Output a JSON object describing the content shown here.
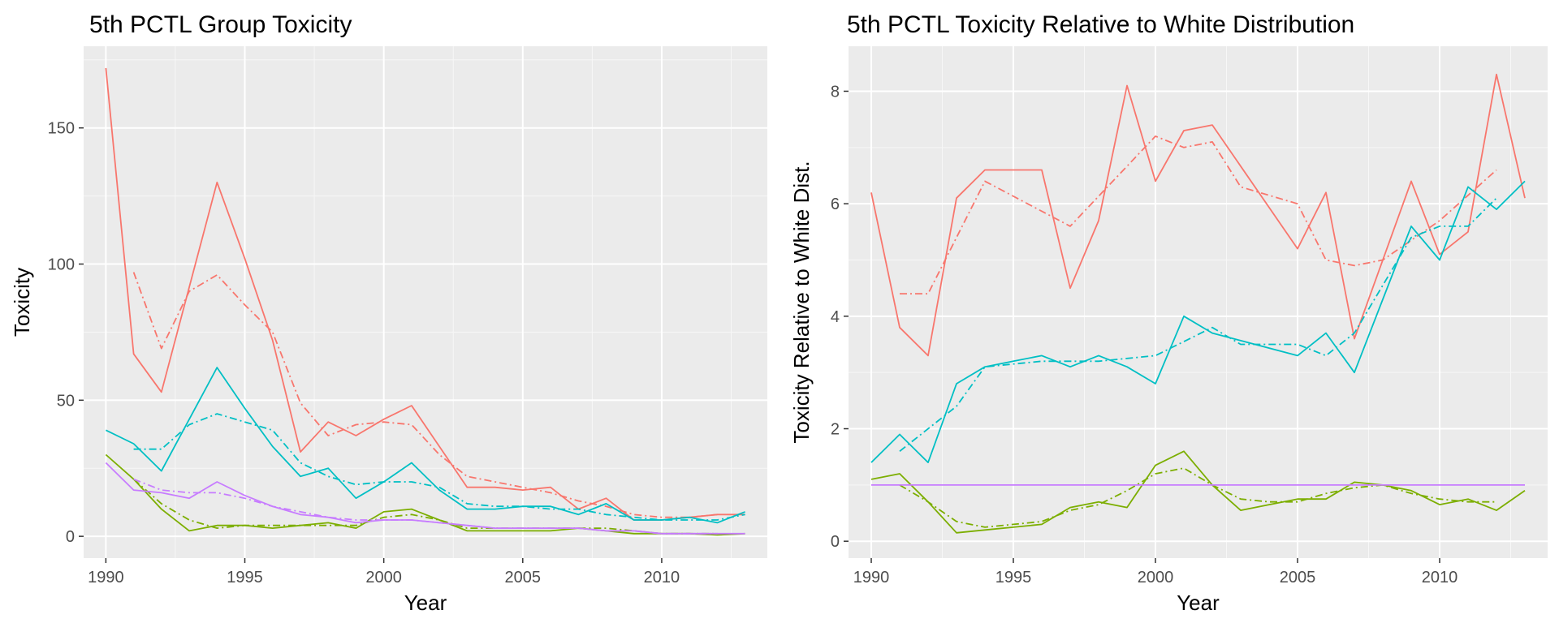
{
  "chart_data": [
    {
      "type": "line",
      "title": "5th PCTL Group Toxicity",
      "xlabel": "Year",
      "ylabel": "Toxicity",
      "xlim": [
        1989.2,
        2013.8
      ],
      "ylim": [
        -8,
        180
      ],
      "x_ticks": [
        1990,
        1995,
        2000,
        2005,
        2010
      ],
      "y_ticks": [
        0,
        50,
        100,
        150
      ],
      "grid": true,
      "series": [
        {
          "color": "#F8766D",
          "style": "solid",
          "width": 1.8,
          "x": [
            1990,
            1991,
            1992,
            1994,
            1995,
            1996,
            1997,
            1998,
            1999,
            2000,
            2001,
            2002,
            2003,
            2004,
            2005,
            2006,
            2007,
            2008,
            2009,
            2010,
            2011,
            2012,
            2013
          ],
          "y": [
            172,
            67,
            53,
            130,
            102,
            72,
            31,
            42,
            37,
            43,
            48,
            33,
            18,
            18,
            17,
            18,
            10,
            14,
            6,
            6,
            7,
            8,
            8
          ]
        },
        {
          "color": "#F8766D",
          "style": "dashdot",
          "width": 1.8,
          "x": [
            1991,
            1992,
            1993,
            1994,
            1995,
            1996,
            1997,
            1998,
            1999,
            2000,
            2001,
            2002,
            2003,
            2004,
            2005,
            2006,
            2007,
            2008,
            2009,
            2010,
            2011,
            2012
          ],
          "y": [
            97,
            69,
            90,
            96,
            85,
            75,
            49,
            37,
            41,
            42,
            41,
            30,
            22,
            20,
            18,
            16,
            13,
            11,
            8,
            7,
            7,
            8
          ]
        },
        {
          "color": "#00BFC4",
          "style": "solid",
          "width": 1.8,
          "x": [
            1990,
            1991,
            1992,
            1994,
            1995,
            1996,
            1997,
            1998,
            1999,
            2000,
            2001,
            2002,
            2003,
            2004,
            2005,
            2006,
            2007,
            2008,
            2009,
            2010,
            2011,
            2012,
            2013
          ],
          "y": [
            39,
            34,
            24,
            62,
            47,
            33,
            22,
            25,
            14,
            20,
            27,
            17,
            10,
            10,
            11,
            11,
            8,
            12,
            6,
            6,
            7,
            5,
            9
          ]
        },
        {
          "color": "#00BFC4",
          "style": "dashdot",
          "width": 1.8,
          "x": [
            1991,
            1992,
            1993,
            1994,
            1995,
            1996,
            1997,
            1998,
            1999,
            2000,
            2001,
            2002,
            2003,
            2004,
            2005,
            2006,
            2007,
            2008,
            2009,
            2010,
            2011,
            2012,
            2013
          ],
          "y": [
            32,
            32,
            41,
            45,
            42,
            39,
            27,
            22,
            19,
            20,
            20,
            18,
            12,
            11,
            11,
            10,
            10,
            8,
            7,
            6,
            6,
            6,
            8
          ]
        },
        {
          "color": "#7CAE00",
          "style": "solid",
          "width": 1.8,
          "x": [
            1990,
            1991,
            1992,
            1993,
            1994,
            1995,
            1996,
            1997,
            1998,
            1999,
            2000,
            2001,
            2002,
            2003,
            2004,
            2005,
            2006,
            2007,
            2008,
            2009,
            2010,
            2011,
            2012,
            2013
          ],
          "y": [
            30,
            21,
            10,
            2,
            4,
            4,
            3,
            4,
            5,
            3,
            9,
            10,
            6,
            2,
            2,
            2,
            2,
            3,
            2,
            1,
            1,
            1,
            0.5,
            1
          ]
        },
        {
          "color": "#7CAE00",
          "style": "dashdot",
          "width": 1.8,
          "x": [
            1991,
            1992,
            1993,
            1994,
            1995,
            1996,
            1997,
            1998,
            1999,
            2000,
            2001,
            2002,
            2003,
            2004,
            2005,
            2006,
            2007,
            2008,
            2009,
            2010,
            2011,
            2012
          ],
          "y": [
            21,
            12,
            6,
            3,
            4,
            4,
            4,
            4,
            4,
            7,
            8,
            6,
            3,
            3,
            3,
            3,
            3,
            3,
            2,
            1,
            1,
            1
          ]
        },
        {
          "color": "#C77CFF",
          "style": "solid",
          "width": 1.8,
          "x": [
            1990,
            1991,
            1992,
            1993,
            1994,
            1995,
            1996,
            1997,
            1998,
            1999,
            2000,
            2001,
            2002,
            2003,
            2004,
            2005,
            2006,
            2007,
            2008,
            2009,
            2010,
            2011,
            2012,
            2013
          ],
          "y": [
            27,
            17,
            16,
            14,
            20,
            15,
            11,
            8,
            7,
            5,
            6,
            6,
            5,
            4,
            3,
            3,
            3,
            3,
            2,
            2,
            1,
            1,
            1,
            1
          ]
        },
        {
          "color": "#C77CFF",
          "style": "dashdot",
          "width": 1.8,
          "x": [
            1991,
            1992,
            1993,
            1994,
            1995,
            1996,
            1997,
            1998,
            1999,
            2000,
            2001,
            2002,
            2003,
            2004,
            2005,
            2006,
            2007,
            2008,
            2009,
            2010,
            2011,
            2012
          ],
          "y": [
            21,
            17,
            16,
            16,
            14,
            11,
            9,
            7,
            6,
            6,
            6,
            5,
            4,
            3,
            3,
            3,
            3,
            2,
            2,
            1,
            1,
            1
          ]
        }
      ]
    },
    {
      "type": "line",
      "title": "5th PCTL Toxicity Relative to White Distribution",
      "xlabel": "Year",
      "ylabel": "Toxicity Relative to White Dist.",
      "xlim": [
        1989.2,
        2013.8
      ],
      "ylim": [
        -0.3,
        8.8
      ],
      "x_ticks": [
        1990,
        1995,
        2000,
        2005,
        2010
      ],
      "y_ticks": [
        0,
        2,
        4,
        6,
        8
      ],
      "grid": true,
      "series": [
        {
          "color": "#F8766D",
          "style": "solid",
          "width": 1.8,
          "x": [
            1990,
            1991,
            1992,
            1993,
            1994,
            1996,
            1997,
            1998,
            1999,
            2000,
            2001,
            2002,
            2005,
            2006,
            2007,
            2009,
            2010,
            2011,
            2012,
            2013
          ],
          "y": [
            6.2,
            3.8,
            3.3,
            6.1,
            6.6,
            6.6,
            4.5,
            5.7,
            8.1,
            6.4,
            7.3,
            7.4,
            5.2,
            6.2,
            3.6,
            6.4,
            5.1,
            5.5,
            8.3,
            6.1
          ]
        },
        {
          "color": "#F8766D",
          "style": "dashdot",
          "width": 1.8,
          "x": [
            1991,
            1992,
            1994,
            1997,
            2000,
            2001,
            2002,
            2003,
            2005,
            2006,
            2007,
            2008,
            2010,
            2012
          ],
          "y": [
            4.4,
            4.4,
            6.4,
            5.6,
            7.2,
            7.0,
            7.1,
            6.3,
            6.0,
            5.0,
            4.9,
            5.0,
            5.7,
            6.6
          ]
        },
        {
          "color": "#00BFC4",
          "style": "solid",
          "width": 1.8,
          "x": [
            1990,
            1991,
            1992,
            1993,
            1994,
            1995,
            1996,
            1997,
            1998,
            1999,
            2000,
            2001,
            2002,
            2005,
            2006,
            2007,
            2008,
            2009,
            2010,
            2011,
            2012,
            2013
          ],
          "y": [
            1.4,
            1.9,
            1.4,
            2.8,
            3.1,
            3.2,
            3.3,
            3.1,
            3.3,
            3.1,
            2.8,
            4.0,
            3.7,
            3.3,
            3.7,
            3.0,
            4.3,
            5.6,
            5.0,
            6.3,
            5.9,
            6.4
          ]
        },
        {
          "color": "#00BFC4",
          "style": "dashdot",
          "width": 1.8,
          "x": [
            1991,
            1993,
            1994,
            1996,
            1997,
            1998,
            2000,
            2002,
            2003,
            2005,
            2006,
            2007,
            2009,
            2010,
            2011,
            2012
          ],
          "y": [
            1.6,
            2.4,
            3.1,
            3.2,
            3.2,
            3.2,
            3.3,
            3.8,
            3.5,
            3.5,
            3.3,
            3.7,
            5.4,
            5.6,
            5.6,
            6.1
          ]
        },
        {
          "color": "#7CAE00",
          "style": "solid",
          "width": 1.8,
          "x": [
            1990,
            1991,
            1992,
            1993,
            1994,
            1995,
            1996,
            1997,
            1998,
            1999,
            2000,
            2001,
            2002,
            2003,
            2004,
            2005,
            2006,
            2007,
            2008,
            2009,
            2010,
            2011,
            2012,
            2013
          ],
          "y": [
            1.1,
            1.2,
            0.7,
            0.15,
            0.2,
            0.25,
            0.3,
            0.6,
            0.7,
            0.6,
            1.35,
            1.6,
            1.0,
            0.55,
            0.65,
            0.75,
            0.75,
            1.05,
            1.0,
            0.9,
            0.65,
            0.75,
            0.55,
            0.9
          ]
        },
        {
          "color": "#7CAE00",
          "style": "dashdot",
          "width": 1.8,
          "x": [
            1991,
            1992,
            1993,
            1994,
            1995,
            1996,
            1997,
            1998,
            1999,
            2000,
            2001,
            2002,
            2003,
            2004,
            2005,
            2006,
            2007,
            2008,
            2009,
            2010,
            2011,
            2012
          ],
          "y": [
            1.0,
            0.7,
            0.35,
            0.25,
            0.3,
            0.35,
            0.55,
            0.65,
            0.9,
            1.2,
            1.3,
            1.0,
            0.75,
            0.7,
            0.7,
            0.85,
            0.95,
            1.0,
            0.85,
            0.75,
            0.7,
            0.7
          ]
        },
        {
          "color": "#C77CFF",
          "style": "solid",
          "width": 1.8,
          "x": [
            1990,
            2013
          ],
          "y": [
            1,
            1
          ]
        }
      ]
    }
  ]
}
